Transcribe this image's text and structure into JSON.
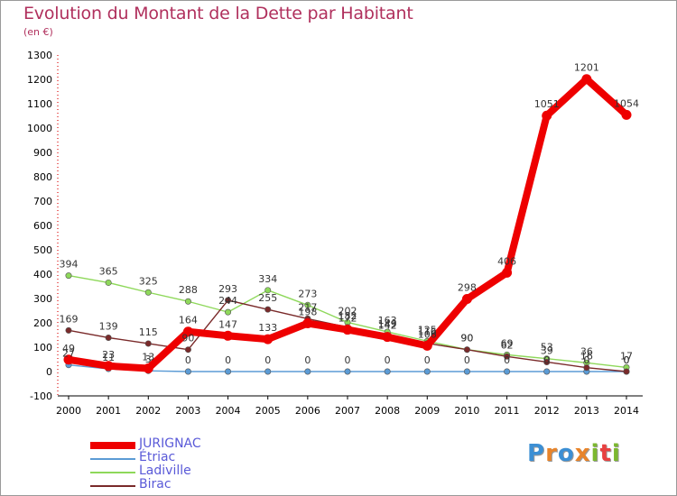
{
  "title": "Evolution du Montant de la Dette par Habitant",
  "subtitle": "(en €)",
  "brand": {
    "letters": [
      "P",
      "r",
      "o",
      "x",
      "i",
      "t",
      "i"
    ],
    "colors": [
      "#3c8fd4",
      "#e8842a",
      "#3c8fd4",
      "#e8842a",
      "#7cb82f",
      "#e84040",
      "#7cb82f"
    ]
  },
  "chart_data": {
    "type": "line",
    "x": [
      "2000",
      "2001",
      "2002",
      "2003",
      "2004",
      "2005",
      "2006",
      "2007",
      "2008",
      "2009",
      "2010",
      "2011",
      "2012",
      "2013",
      "2014"
    ],
    "ylim": [
      -100,
      1300
    ],
    "yticks": [
      "-100",
      "0",
      "100",
      "200",
      "300",
      "400",
      "500",
      "600",
      "700",
      "800",
      "900",
      "1000",
      "1100",
      "1200",
      "1300"
    ],
    "grid": false,
    "legend_position": "bottom-left",
    "series": [
      {
        "name": "JURIGNAC",
        "color": "#ee0000",
        "values": [
          49,
          23,
          13,
          164,
          147,
          133,
          198,
          172,
          142,
          106,
          298,
          406,
          1051,
          1201,
          1054
        ],
        "labels": [
          "49",
          "23",
          "13",
          "164",
          "147",
          "133",
          "198",
          "172",
          "142",
          "106",
          "298",
          "406",
          "1051",
          "1201",
          "1054"
        ]
      },
      {
        "name": "Étriac",
        "color": "#5b9bd5",
        "values": [
          27,
          11,
          3,
          0,
          0,
          0,
          0,
          0,
          0,
          0,
          0,
          0,
          0,
          0,
          0
        ],
        "labels": [
          "27",
          "11",
          "3",
          "0",
          "0",
          "0",
          "0",
          "0",
          "0",
          "0",
          "0",
          "0",
          "0",
          "0",
          "0"
        ]
      },
      {
        "name": "Ladiville",
        "color": "#8ed85a",
        "values": [
          394,
          365,
          325,
          288,
          244,
          334,
          273,
          202,
          163,
          125,
          90,
          69,
          53,
          36,
          17
        ],
        "labels": [
          "394",
          "365",
          "325",
          "288",
          "244",
          "334",
          "273",
          "202",
          "163",
          "125",
          "90",
          "69",
          "53",
          "36",
          "17"
        ]
      },
      {
        "name": "Birac",
        "color": "#7a2a2a",
        "values": [
          169,
          139,
          115,
          90,
          293,
          255,
          217,
          182,
          149,
          116,
          90,
          62,
          39,
          16,
          0
        ],
        "labels": [
          "169",
          "139",
          "115",
          "90",
          "293",
          "255",
          "217",
          "182",
          "149",
          "116",
          "90",
          "62",
          "39",
          "16",
          "0"
        ]
      }
    ]
  }
}
